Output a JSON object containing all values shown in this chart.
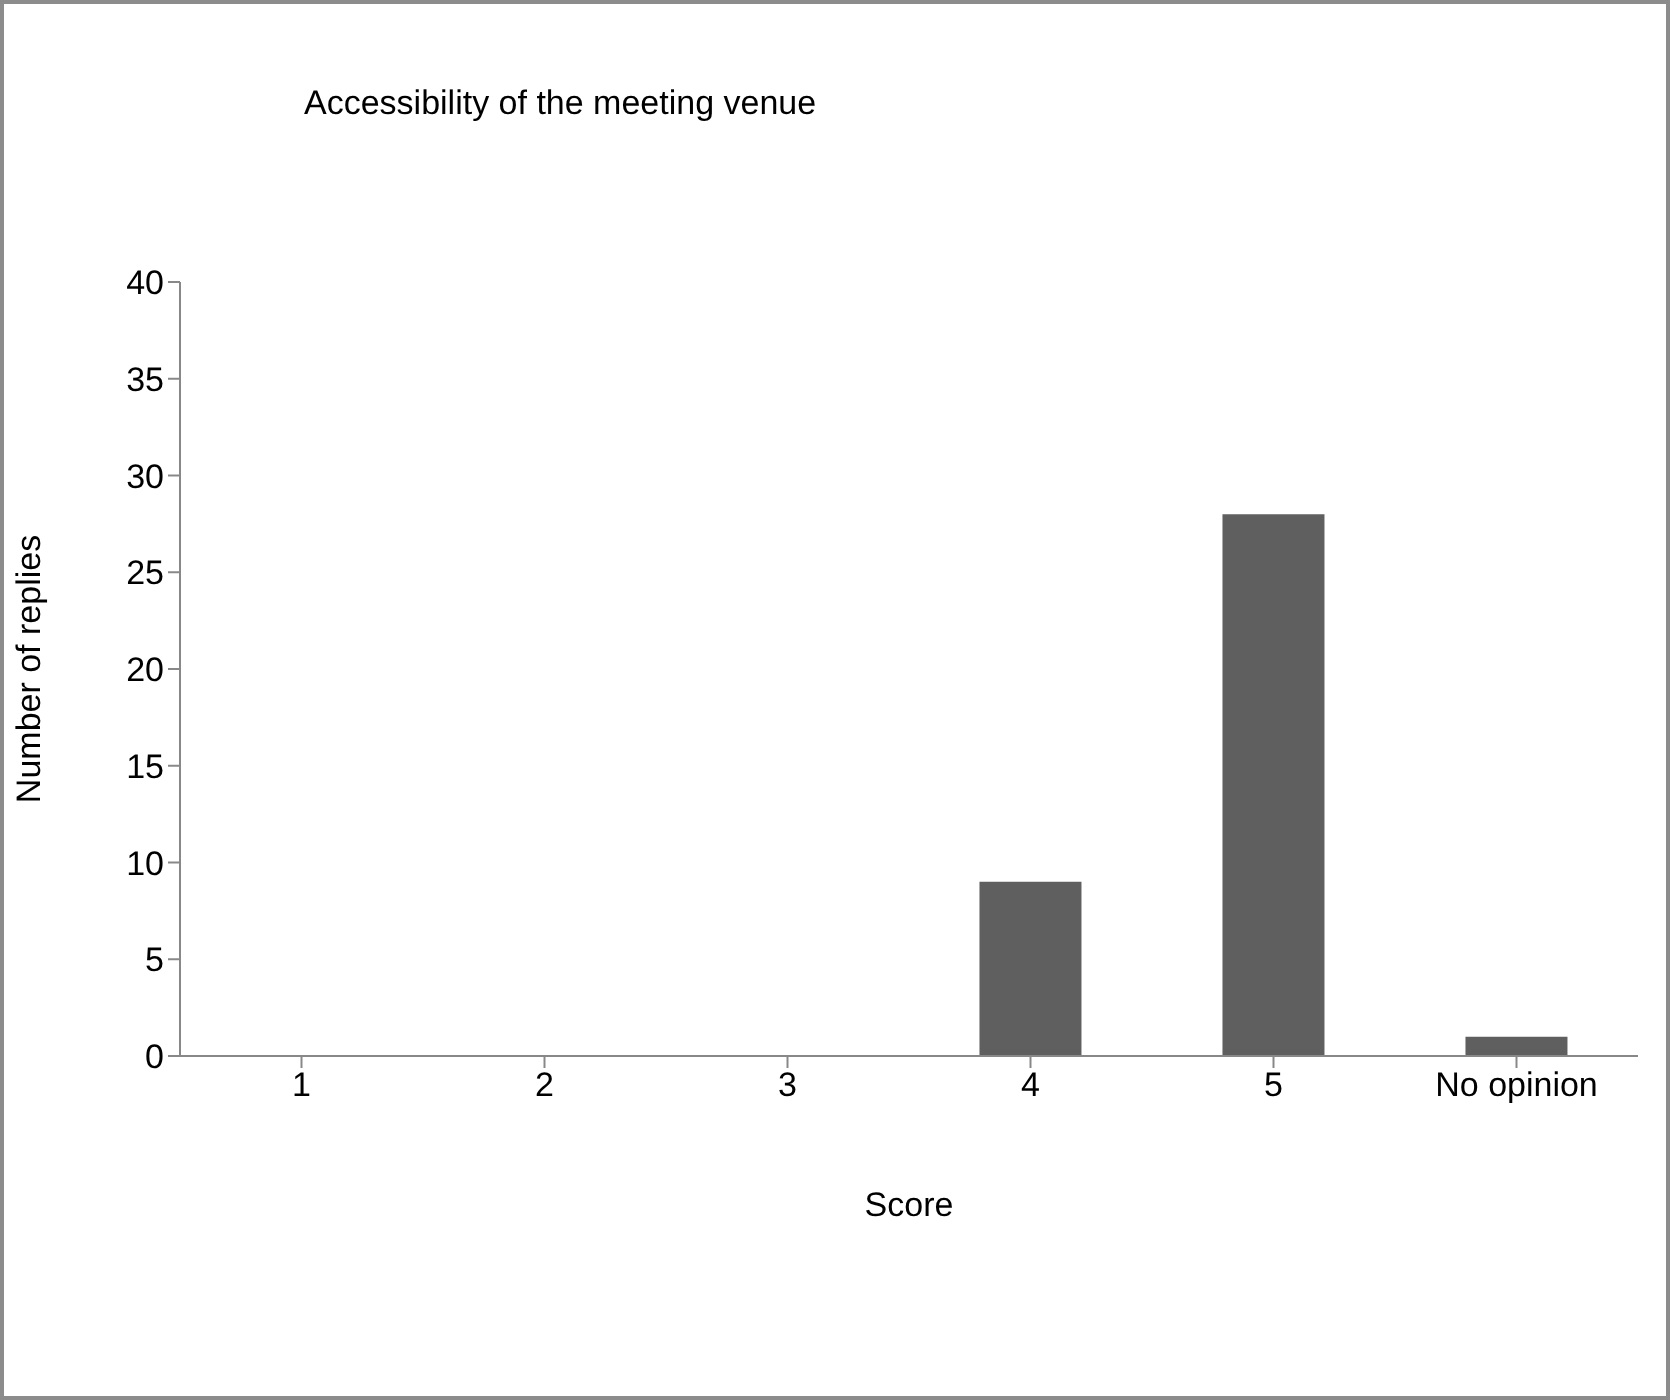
{
  "chart_data": {
    "type": "bar",
    "title": "Accessibility of the meeting venue",
    "xlabel": "Score",
    "ylabel": "Number of replies",
    "categories": [
      "1",
      "2",
      "3",
      "4",
      "5",
      "No opinion"
    ],
    "values": [
      0,
      0,
      0,
      9,
      28,
      1
    ],
    "color": "#5f5f5f",
    "ylim": [
      0,
      40
    ],
    "yticks": [
      0,
      5,
      10,
      15,
      20,
      25,
      30,
      35,
      40
    ],
    "grid": false
  }
}
